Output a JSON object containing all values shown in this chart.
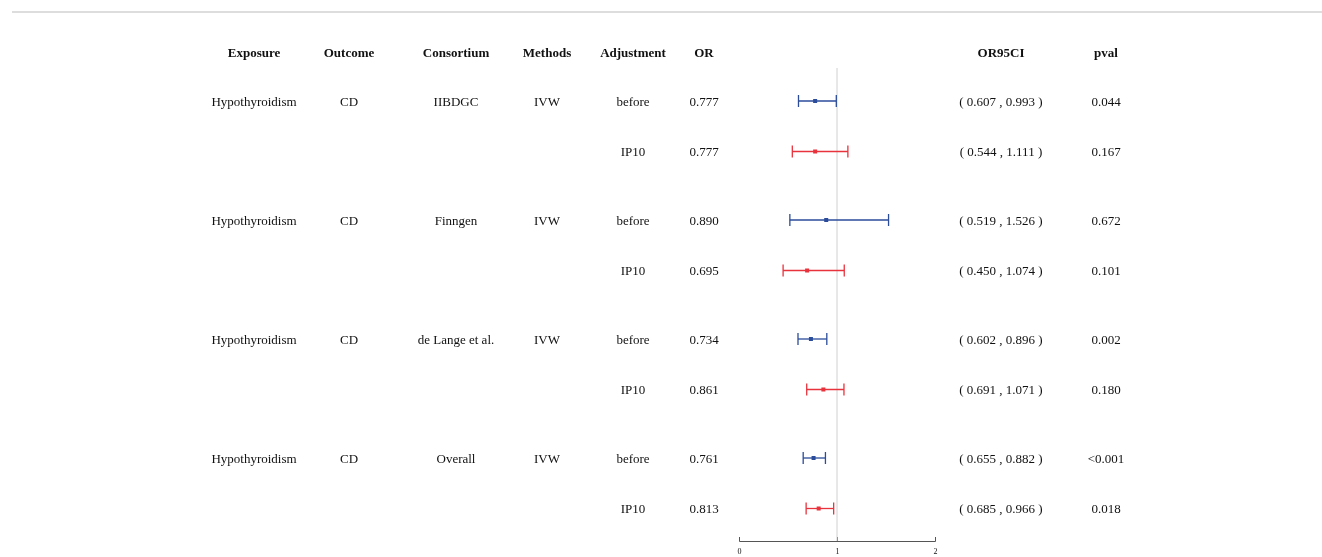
{
  "chart_data": {
    "type": "scatter",
    "orientation": "horizontal",
    "categories": [
      null,
      null,
      null,
      null,
      null,
      null,
      null,
      null
    ],
    "values": [
      0.777,
      0.777,
      0.89,
      0.695,
      0.734,
      0.861,
      0.761,
      0.813
    ],
    "errors": [
      [
        0.607,
        0.993
      ],
      [
        0.544,
        1.111
      ],
      [
        0.519,
        1.526
      ],
      [
        0.45,
        1.074
      ],
      [
        0.602,
        0.896
      ],
      [
        0.691,
        1.071
      ],
      [
        0.655,
        0.882
      ],
      [
        0.685,
        0.966
      ]
    ],
    "colors": [
      "#2b4c9b",
      "#e8323c",
      "#2b4c9b",
      "#e8323c",
      "#2b4c9b",
      "#e8323c",
      "#2b4c9b",
      "#e8323c"
    ],
    "xlim": [
      0,
      2
    ],
    "xticks": [
      0,
      1,
      2
    ],
    "marker": "square",
    "ref_lines": [
      {
        "axis": "x",
        "value": 1,
        "color": "#d0d0d0"
      }
    ],
    "annotations": [
      "Exposure",
      "Outcome",
      "Consortium",
      "Methods",
      "Adjustment",
      "OR",
      "OR95CI",
      "pval",
      "Hypothyroidism",
      "CD",
      "IIBDGC",
      "IVW",
      "Hypothyroidism",
      "CD",
      "Finngen",
      "IVW",
      "Hypothyroidism",
      "CD",
      "de Lange et al.",
      "IVW",
      "Hypothyroidism",
      "CD",
      "Overall",
      "IVW",
      "before",
      "0.777",
      "( 0.607 , 0.993 )",
      "0.044",
      "IP10",
      "0.777",
      "( 0.544 , 1.111 )",
      "0.167",
      "before",
      "0.890",
      "( 0.519 , 1.526 )",
      "0.672",
      "IP10",
      "0.695",
      "( 0.450 , 1.074 )",
      "0.101",
      "before",
      "0.734",
      "( 0.602 , 0.896 )",
      "0.002",
      "IP10",
      "0.861",
      "( 0.691 , 1.071 )",
      "0.180",
      "before",
      "0.761",
      "( 0.655 , 0.882 )",
      "<0.001",
      "IP10",
      "0.813",
      "( 0.685 , 0.966 )",
      "0.018"
    ]
  }
}
